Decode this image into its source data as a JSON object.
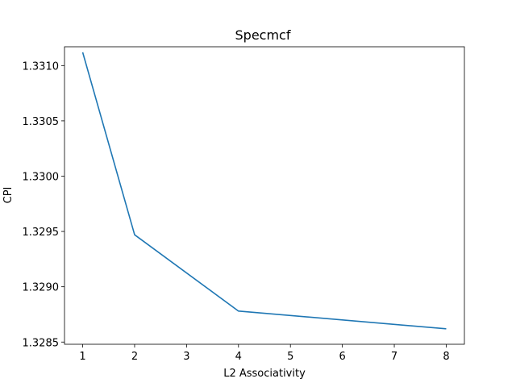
{
  "chart_data": {
    "type": "line",
    "title": "Specmcf",
    "xlabel": "L2 Associativity",
    "ylabel": "CPI",
    "xlim": [
      0.65,
      8.35
    ],
    "ylim": [
      1.32848,
      1.33117
    ],
    "xticks": [
      1,
      2,
      3,
      4,
      5,
      6,
      7,
      8
    ],
    "xtick_labels": [
      "1",
      "2",
      "3",
      "4",
      "5",
      "6",
      "7",
      "8"
    ],
    "yticks": [
      1.3285,
      1.329,
      1.3295,
      1.33,
      1.3305,
      1.331
    ],
    "ytick_labels": [
      "1.3285",
      "1.3290",
      "1.3295",
      "1.3300",
      "1.3305",
      "1.3310"
    ],
    "grid": false,
    "series": [
      {
        "color": "#1f77b4",
        "x": [
          1,
          2,
          4,
          8
        ],
        "y": [
          1.33112,
          1.32947,
          1.32878,
          1.32862
        ]
      }
    ]
  }
}
